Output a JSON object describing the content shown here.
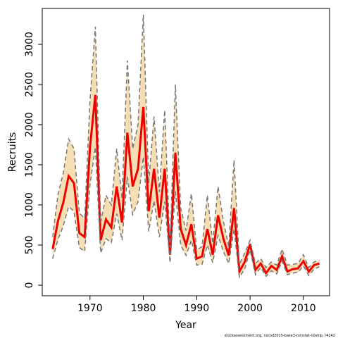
{
  "chart_data": {
    "type": "line",
    "x_label": "Year",
    "y_label": "Recruits",
    "footnote": "stockassessment.org, nscod2015-base3-nonstat-noship, r4242",
    "x": [
      1963,
      1964,
      1965,
      1966,
      1967,
      1968,
      1969,
      1970,
      1971,
      1972,
      1973,
      1974,
      1975,
      1976,
      1977,
      1978,
      1979,
      1980,
      1981,
      1982,
      1983,
      1984,
      1985,
      1986,
      1987,
      1988,
      1989,
      1990,
      1991,
      1992,
      1993,
      1994,
      1995,
      1996,
      1997,
      1998,
      1999,
      2000,
      2001,
      2002,
      2003,
      2004,
      2005,
      2006,
      2007,
      2008,
      2009,
      2010,
      2011,
      2012,
      2013
    ],
    "series": [
      {
        "name": "estimate",
        "color": "#ee0000",
        "values": [
          450,
          800,
          1030,
          1360,
          1270,
          650,
          600,
          1720,
          2370,
          560,
          820,
          720,
          1230,
          780,
          1900,
          1230,
          1450,
          2220,
          920,
          1450,
          840,
          1450,
          380,
          1650,
          700,
          500,
          760,
          330,
          360,
          700,
          380,
          870,
          580,
          370,
          960,
          170,
          290,
          510,
          190,
          270,
          150,
          240,
          190,
          360,
          170,
          200,
          210,
          300,
          170,
          250,
          270
        ]
      },
      {
        "name": "upper",
        "color": "#777777",
        "values": [
          600,
          1130,
          1400,
          1820,
          1700,
          900,
          830,
          2300,
          3220,
          780,
          1120,
          1000,
          1700,
          1080,
          2800,
          1700,
          2000,
          3370,
          1270,
          2100,
          1160,
          2180,
          470,
          2500,
          960,
          680,
          1140,
          440,
          480,
          1120,
          520,
          1230,
          800,
          480,
          1560,
          260,
          400,
          560,
          270,
          330,
          220,
          290,
          250,
          450,
          250,
          260,
          270,
          380,
          220,
          290,
          310
        ]
      },
      {
        "name": "lower",
        "color": "#777777",
        "values": [
          330,
          570,
          740,
          980,
          920,
          470,
          420,
          1250,
          1720,
          400,
          580,
          530,
          890,
          560,
          1350,
          880,
          1040,
          1600,
          670,
          1050,
          600,
          1040,
          280,
          1170,
          500,
          370,
          560,
          250,
          260,
          500,
          280,
          620,
          420,
          270,
          700,
          100,
          200,
          440,
          130,
          220,
          110,
          180,
          140,
          300,
          130,
          150,
          160,
          240,
          120,
          200,
          230
        ]
      }
    ],
    "band_color": "#f5deb3",
    "xlim": [
      1961.05,
      2014.9
    ],
    "xticks": [
      1970,
      1980,
      1990,
      2000,
      2010
    ],
    "ylim": [
      -131.6,
      3447
    ],
    "yticks": [
      0,
      500,
      1000,
      1500,
      2000,
      2500,
      3000
    ]
  }
}
